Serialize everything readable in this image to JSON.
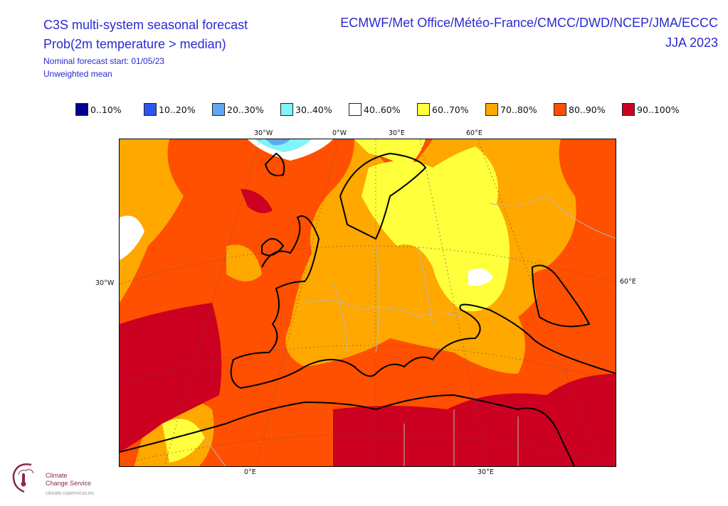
{
  "header": {
    "title": "C3S multi-system seasonal forecast",
    "subtitle": "Prob(2m temperature > median)",
    "forecast_start": "Nominal forecast start: 01/05/23",
    "method": "Unweighted mean",
    "centres": "ECMWF/Met Office/Météo-France/CMCC/DWD/NCEP/JMA/ECCC",
    "season": "JJA 2023"
  },
  "legend": [
    {
      "label": "0..10%",
      "color": "#000090"
    },
    {
      "label": "10..20%",
      "color": "#2f55f0"
    },
    {
      "label": "20..30%",
      "color": "#5fa8f2"
    },
    {
      "label": "30..40%",
      "color": "#80f4f6"
    },
    {
      "label": "40..60%",
      "color": "#ffffff"
    },
    {
      "label": "60..70%",
      "color": "#ffff3c"
    },
    {
      "label": "70..80%",
      "color": "#ffa800"
    },
    {
      "label": "80..90%",
      "color": "#ff4f00"
    },
    {
      "label": "90..100%",
      "color": "#cc0020"
    }
  ],
  "map": {
    "top_labels": [
      "30°W",
      "0°W",
      "30°E",
      "60°E"
    ],
    "left_label": "30°W",
    "right_label": "60°E",
    "bottom_labels": [
      "0°E",
      "30°E"
    ]
  },
  "logo": {
    "line1": "Climate",
    "line2": "Change Service",
    "url": "climate.copernicus.eu"
  }
}
